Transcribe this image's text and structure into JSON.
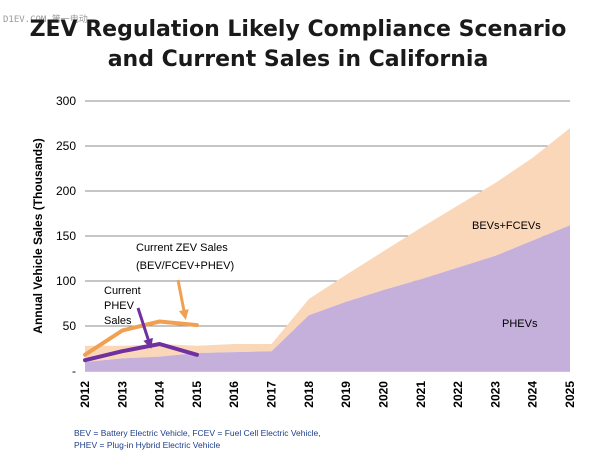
{
  "chart_data": {
    "type": "area",
    "title": [
      "ZEV Regulation Likely Compliance Scenario",
      "and Current Sales in California"
    ],
    "ylabel": "Annual Vehicle Sales (Thousands)",
    "xlabel": "",
    "ylim": [
      0,
      300
    ],
    "yticks": [
      0,
      50,
      100,
      150,
      200,
      250,
      300
    ],
    "ytick_labels": [
      "-",
      "50",
      "100",
      "150",
      "200",
      "250",
      "300"
    ],
    "x": [
      "2012",
      "2013",
      "2014",
      "2015",
      "2016",
      "2017",
      "2018",
      "2019",
      "2020",
      "2021",
      "2022",
      "2023",
      "2024",
      "2025"
    ],
    "grid": true,
    "series": [
      {
        "name": "PHEVs",
        "kind": "area",
        "color": "#c5b0dc",
        "values": [
          10,
          14,
          16,
          20,
          21,
          22,
          62,
          77,
          90,
          102,
          115,
          128,
          145,
          162
        ]
      },
      {
        "name": "BEVs+FCEVs",
        "kind": "area_stacked",
        "color": "#fbd7b9",
        "values": [
          18,
          14,
          14,
          8,
          9,
          8,
          18,
          30,
          43,
          57,
          69,
          81,
          92,
          108
        ]
      },
      {
        "name": "Current ZEV Sales (BEV/FCEV+PHEV)",
        "kind": "line",
        "color": "#f0a050",
        "x": [
          "2012",
          "2013",
          "2014",
          "2015"
        ],
        "values": [
          18,
          45,
          55,
          51
        ]
      },
      {
        "name": "Current PHEV Sales",
        "kind": "line",
        "color": "#7030a0",
        "x": [
          "2012",
          "2013",
          "2014",
          "2015"
        ],
        "values": [
          12,
          22,
          30,
          18
        ]
      }
    ],
    "annotations": {
      "bevs_fcevs": "BEVs+FCEVs",
      "phevs": "PHEVs",
      "zev_sales": [
        "Current ZEV Sales",
        "(BEV/FCEV+PHEV)"
      ],
      "phev_sales": [
        "Current",
        "PHEV",
        "Sales"
      ]
    },
    "footnote": [
      "BEV = Battery Electric Vehicle, FCEV = Fuel Cell Electric Vehicle,",
      "PHEV = Plug-in Hybrid Electric Vehicle"
    ],
    "watermark": "D1EV.COM 第一电动"
  }
}
